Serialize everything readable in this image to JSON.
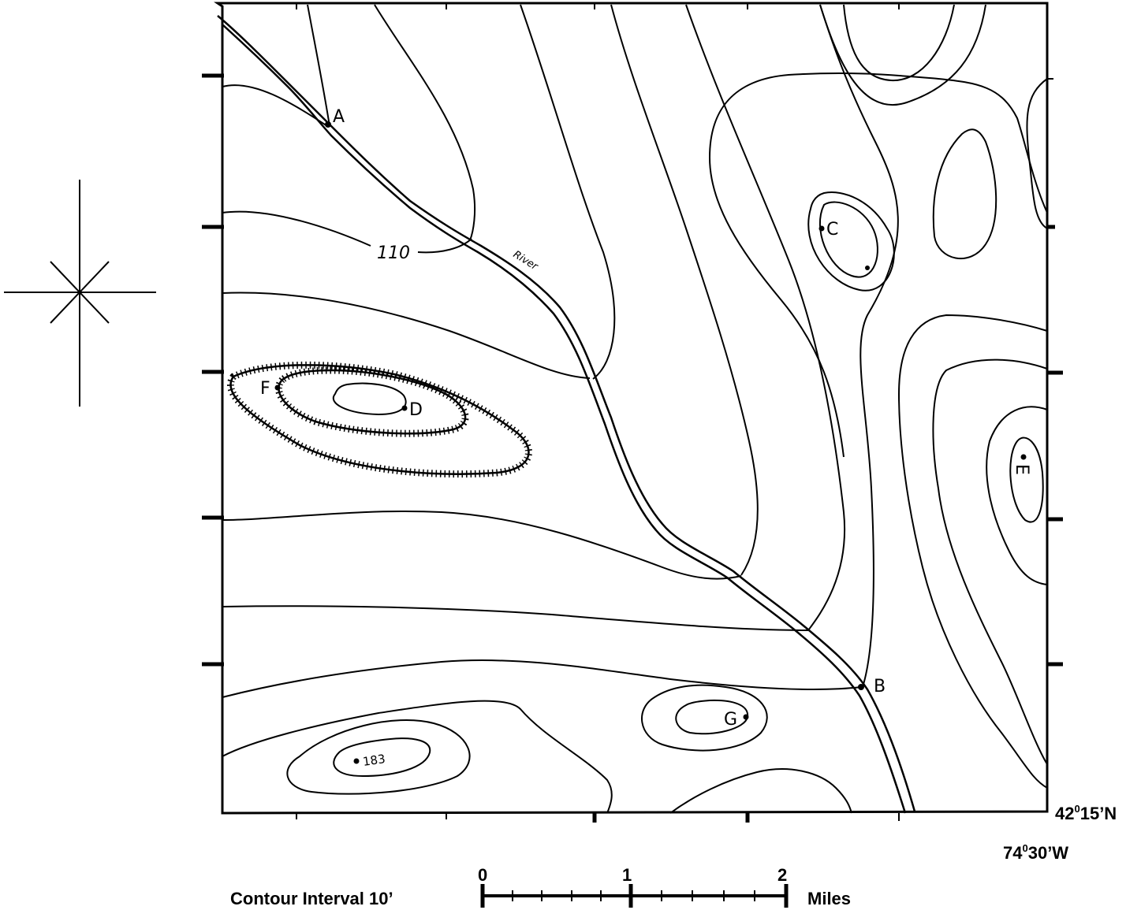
{
  "contour_interval_label": "Contour Interval 10’",
  "contour_label": "110",
  "river_label": "River",
  "latitude_deg": "42",
  "latitude_min": "15’N",
  "longitude_deg": "74",
  "longitude_min": "30’W",
  "degree_mark": "0",
  "scale": {
    "ticks": [
      "0",
      "1",
      "2"
    ],
    "unit": "Miles"
  },
  "points": {
    "A": "A",
    "B": "B",
    "C": "C",
    "D": "D",
    "E": "E",
    "F": "F",
    "G": "G"
  },
  "spot_elevation": "183"
}
